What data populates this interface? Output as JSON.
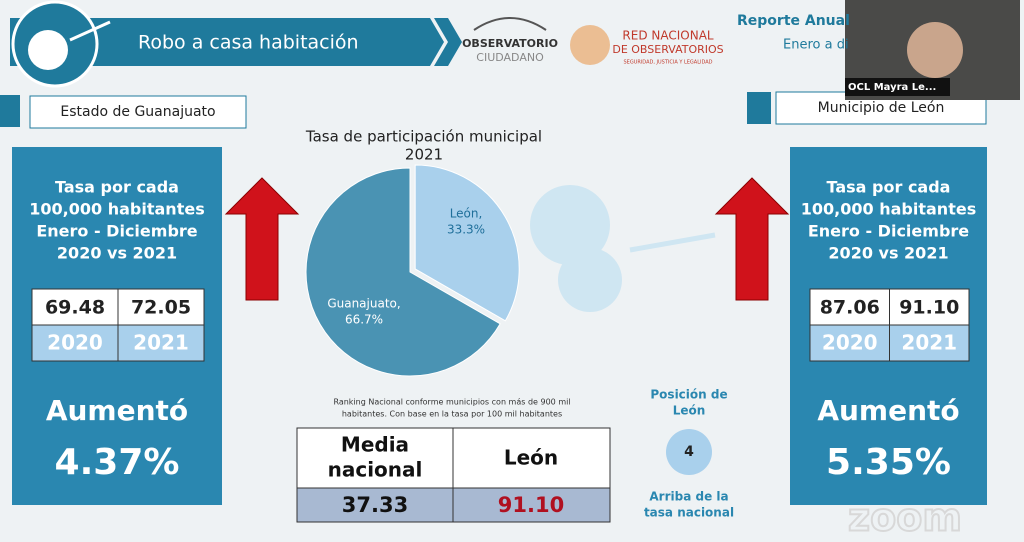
{
  "header": {
    "title": "Robo a casa habitación",
    "logo_observatorio": [
      "OBSERVATORIO",
      "CIUDADANO"
    ],
    "logo_red": [
      "RED NACIONAL",
      "DE OBSERVATORIOS",
      "SEGURIDAD, JUSTICIA Y LEGALIDAD"
    ],
    "report_title": "Reporte Anual",
    "report_subtitle": "Enero a di"
  },
  "video": {
    "participant": "OCL Mayra Le..."
  },
  "left_panel": {
    "label": "Estado de Guanajuato",
    "heading": [
      "Tasa por cada",
      "100,000 habitantes",
      "Enero - Diciembre",
      "2020 vs 2021"
    ],
    "rates": [
      "69.48",
      "72.05"
    ],
    "years": [
      "2020",
      "2021"
    ],
    "result": "Aumentó",
    "change": "4.37%"
  },
  "right_panel": {
    "label": "Municipio de León",
    "heading": [
      "Tasa por cada",
      "100,000 habitantes",
      "Enero - Diciembre",
      "2020 vs 2021"
    ],
    "rates": [
      "87.06",
      "91.10"
    ],
    "years": [
      "2020",
      "2021"
    ],
    "result": "Aumentó",
    "change": "5.35%"
  },
  "chart_data": {
    "type": "pie",
    "title": [
      "Tasa de participación municipal",
      "2021"
    ],
    "categories": [
      "León,",
      "Guanajuato,"
    ],
    "values": [
      33.3,
      66.7
    ],
    "value_labels": [
      "33.3%",
      "66.7%"
    ],
    "colors": [
      "#a9d0ec",
      "#4a93b3"
    ]
  },
  "ranking": {
    "note": [
      "Ranking Nacional conforme municipios con más de 900 mil",
      "habitantes. Con base en la tasa por 100 mil habitantes"
    ],
    "headers": [
      [
        "Media",
        "nacional"
      ],
      [
        "León"
      ]
    ],
    "values": [
      "37.33",
      "91.10"
    ]
  },
  "position": {
    "label": [
      "Posición de",
      "León"
    ],
    "value": "4",
    "note": [
      "Arriba de la",
      "tasa nacional"
    ]
  },
  "watermark": "zoom"
}
